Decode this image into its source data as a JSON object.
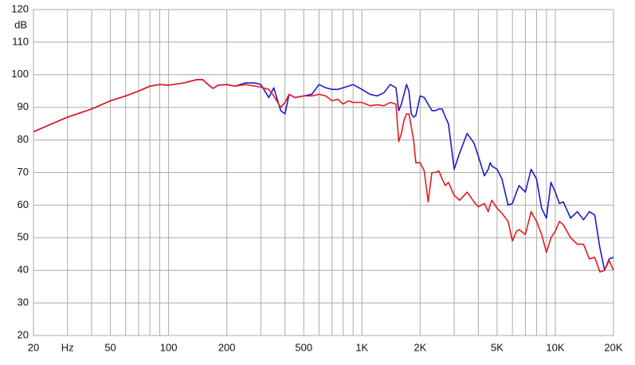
{
  "chart_data": {
    "type": "line",
    "ylabel": "dB",
    "log_x": true,
    "grid": true,
    "xlim": [
      20,
      20000
    ],
    "ylim": [
      20,
      120
    ],
    "xticks": [
      20,
      {
        "value": 30,
        "label": "Hz"
      },
      50,
      100,
      200,
      500,
      {
        "value": 1000,
        "label": "1K"
      },
      {
        "value": 2000,
        "label": "2K"
      },
      {
        "value": 5000,
        "label": "5K"
      },
      {
        "value": 10000,
        "label": "10K"
      },
      {
        "value": 20000,
        "label": "20K"
      }
    ],
    "xminorticks": [
      40,
      60,
      70,
      80,
      90,
      300,
      400,
      600,
      700,
      800,
      900,
      3000,
      4000,
      6000,
      7000,
      8000,
      9000
    ],
    "yticks": [
      20,
      30,
      40,
      50,
      60,
      70,
      80,
      90,
      100,
      110,
      120
    ],
    "x": [
      20,
      25,
      30,
      40,
      50,
      60,
      70,
      80,
      90,
      100,
      120,
      140,
      150,
      160,
      170,
      180,
      200,
      220,
      250,
      280,
      300,
      330,
      350,
      380,
      400,
      420,
      450,
      500,
      550,
      600,
      650,
      700,
      750,
      800,
      850,
      900,
      1000,
      1100,
      1200,
      1300,
      1400,
      1500,
      1550,
      1600,
      1650,
      1700,
      1750,
      1800,
      1850,
      1900,
      2000,
      2100,
      2200,
      2300,
      2400,
      2500,
      2600,
      2700,
      2800,
      3000,
      3200,
      3500,
      3800,
      4000,
      4300,
      4500,
      4600,
      4700,
      5000,
      5300,
      5700,
      6000,
      6300,
      6500,
      7000,
      7500,
      8000,
      8500,
      9000,
      9500,
      10000,
      10500,
      11000,
      12000,
      13000,
      14000,
      15000,
      16000,
      17000,
      18000,
      19000,
      20000
    ],
    "series": [
      {
        "color": "#1c1cc8",
        "values": [
          82.5,
          85,
          87,
          89.5,
          92,
          93.5,
          95,
          96.5,
          97,
          96.8,
          97.5,
          98.5,
          98.5,
          97,
          95.8,
          96.8,
          97,
          96.5,
          97.5,
          97.5,
          97,
          93,
          96,
          89,
          88,
          94,
          93,
          93.5,
          94,
          97,
          96,
          95.5,
          95.5,
          96,
          96.5,
          97,
          95.5,
          94,
          93.5,
          94.5,
          97,
          96,
          89,
          91,
          94,
          97,
          95,
          88,
          87,
          87.5,
          93.5,
          93,
          91,
          89,
          89,
          89.5,
          89.5,
          87,
          85,
          71,
          76,
          82,
          79,
          75,
          69,
          71,
          73,
          72,
          71,
          68,
          60,
          60.5,
          64,
          66,
          64,
          71,
          68,
          59,
          56,
          67,
          64,
          60.5,
          61,
          56,
          58,
          55.5,
          58,
          57,
          47,
          40,
          43.5,
          44
        ]
      },
      {
        "color": "#e8191e",
        "values": [
          82.5,
          85,
          87,
          89.5,
          92,
          93.5,
          95,
          96.5,
          97,
          96.8,
          97.5,
          98.5,
          98.5,
          97,
          95.8,
          96.8,
          97,
          96.5,
          97,
          96.5,
          96.2,
          95.5,
          93.5,
          90,
          91.5,
          94,
          93,
          93.5,
          93.5,
          94,
          93.5,
          92,
          92.5,
          91,
          92,
          91.5,
          91.5,
          90.5,
          90.8,
          90.5,
          91.5,
          91,
          79.5,
          82,
          86,
          88,
          88,
          84,
          80,
          73,
          73,
          70.5,
          61,
          70,
          70,
          70.5,
          68,
          66,
          67,
          63,
          61.5,
          64,
          61,
          59.5,
          60.5,
          58,
          60,
          61.5,
          59,
          57.5,
          55,
          49,
          52,
          52.5,
          51,
          58,
          55,
          51,
          45.5,
          50,
          52,
          55,
          54,
          50,
          48,
          48,
          43.5,
          44,
          39.5,
          40,
          43,
          40
        ]
      }
    ]
  }
}
